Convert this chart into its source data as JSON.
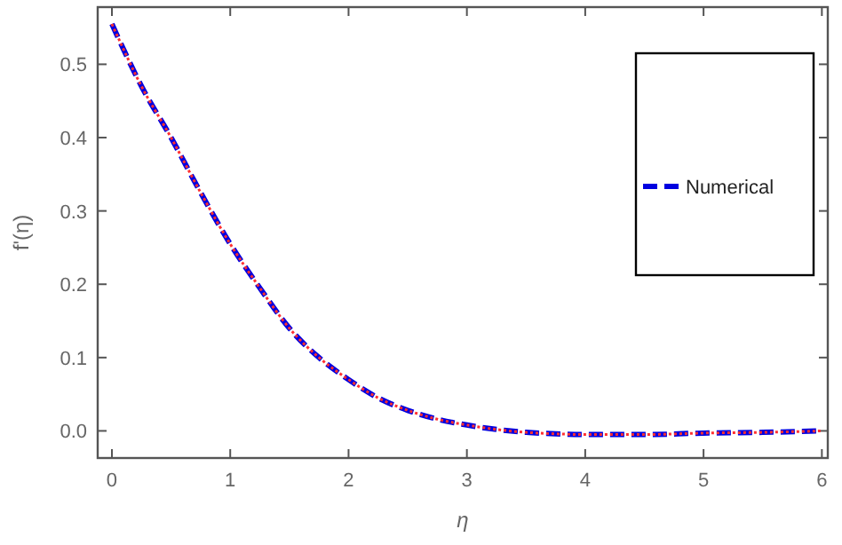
{
  "chart_data": {
    "type": "line",
    "xlabel": "η",
    "ylabel": "f'(η)",
    "x": [
      0,
      0.25,
      0.5,
      0.75,
      1,
      1.25,
      1.5,
      1.75,
      2,
      2.25,
      2.5,
      2.75,
      3,
      3.25,
      3.5,
      3.75,
      4,
      4.5,
      5,
      5.5,
      6
    ],
    "series": [
      {
        "color": "#ff3030",
        "line_style": "dotted",
        "values": [
          0.555,
          0.47,
          0.4,
          0.325,
          0.255,
          0.195,
          0.14,
          0.1,
          0.07,
          0.045,
          0.028,
          0.016,
          0.008,
          0.002,
          -0.002,
          -0.004,
          -0.005,
          -0.005,
          -0.003,
          -0.002,
          0.0
        ]
      },
      {
        "name": "Numerical",
        "color": "#0000e0",
        "line_style": "dashed",
        "values": [
          0.555,
          0.47,
          0.4,
          0.325,
          0.255,
          0.195,
          0.14,
          0.1,
          0.07,
          0.045,
          0.028,
          0.016,
          0.008,
          0.002,
          -0.002,
          -0.004,
          -0.005,
          -0.005,
          -0.003,
          -0.002,
          0.0
        ]
      }
    ],
    "xlim": [
      -0.12,
      6.05
    ],
    "ylim": [
      -0.037,
      0.578
    ],
    "xticks": [
      0,
      1,
      2,
      3,
      4,
      5,
      6
    ],
    "yticks": [
      {
        "value": 0,
        "label": "0.0"
      },
      0.1,
      0.2,
      0.3,
      0.4,
      0.5
    ],
    "legend": "top right"
  }
}
